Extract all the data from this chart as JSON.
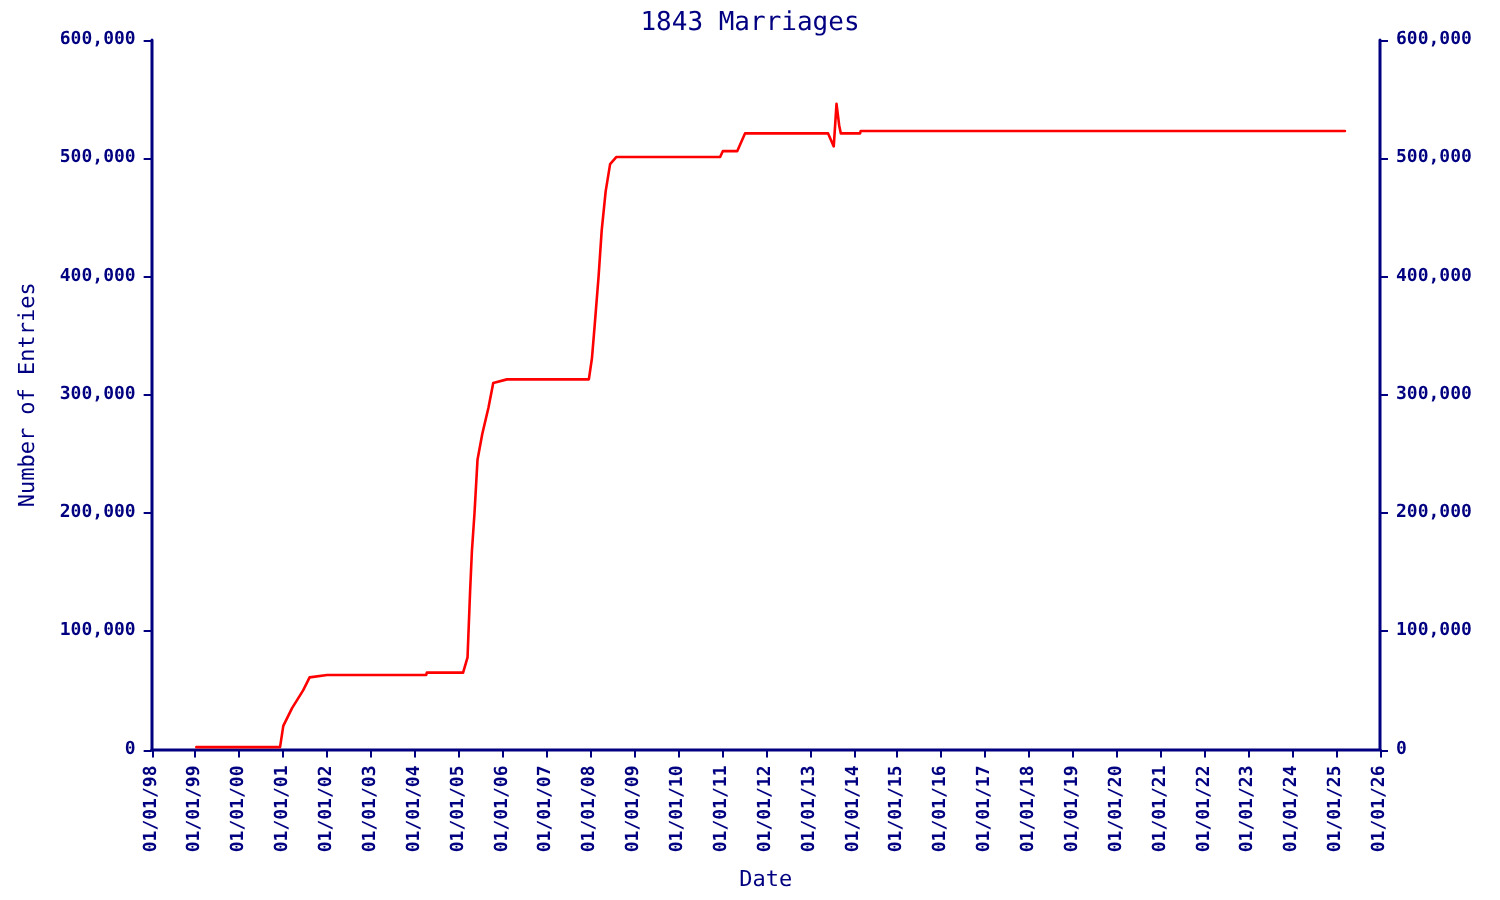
{
  "chart_data": {
    "type": "line",
    "title": "1843 Marriages",
    "xlabel": "Date",
    "ylabel": "Number of Entries",
    "x": [
      "1999-01-08",
      "2000-12-05",
      "2001-01-01",
      "2001-03-15",
      "2001-06-15",
      "2001-08-08",
      "2002-01-01",
      "2004-04-05",
      "2004-04-10",
      "2005-02-06",
      "2005-03-15",
      "2005-04-05",
      "2005-04-20",
      "2005-05-12",
      "2005-06-06",
      "2005-07-16",
      "2005-09-05",
      "2005-10-15",
      "2006-02-06",
      "2007-12-20",
      "2008-01-15",
      "2008-02-06",
      "2008-03-10",
      "2008-04-05",
      "2008-05-08",
      "2008-06-14",
      "2008-08-04",
      "2010-12-17",
      "2011-01-08",
      "2011-05-08",
      "2011-07-12",
      "2013-06-03",
      "2013-07-20",
      "2013-08-12",
      "2013-09-03",
      "2013-09-17",
      "2014-02-24",
      "2014-03-01",
      "2025-03-15"
    ],
    "series": [
      {
        "color": "#ff0000",
        "values": [
          2000,
          2000,
          20000,
          35000,
          50000,
          61000,
          63000,
          63000,
          65000,
          65000,
          78000,
          133000,
          167000,
          200000,
          245000,
          267000,
          289000,
          310000,
          313000,
          313000,
          331000,
          358000,
          400000,
          439000,
          472000,
          495000,
          501000,
          501000,
          506000,
          506000,
          521000,
          521000,
          510000,
          546000,
          528000,
          521000,
          521000,
          523000,
          523000
        ]
      }
    ],
    "xlim": [
      "1998-01-01",
      "2026-01-01"
    ],
    "xticks": [
      {
        "value": "1998-01-01",
        "label": "01/01/98"
      },
      {
        "value": "1999-01-01",
        "label": "01/01/99"
      },
      {
        "value": "2000-01-01",
        "label": "01/01/00"
      },
      {
        "value": "2001-01-01",
        "label": "01/01/01"
      },
      {
        "value": "2002-01-01",
        "label": "01/01/02"
      },
      {
        "value": "2003-01-01",
        "label": "01/01/03"
      },
      {
        "value": "2004-01-01",
        "label": "01/01/04"
      },
      {
        "value": "2005-01-01",
        "label": "01/01/05"
      },
      {
        "value": "2006-01-01",
        "label": "01/01/06"
      },
      {
        "value": "2007-01-01",
        "label": "01/01/07"
      },
      {
        "value": "2008-01-01",
        "label": "01/01/08"
      },
      {
        "value": "2009-01-01",
        "label": "01/01/09"
      },
      {
        "value": "2010-01-01",
        "label": "01/01/10"
      },
      {
        "value": "2011-01-01",
        "label": "01/01/11"
      },
      {
        "value": "2012-01-01",
        "label": "01/01/12"
      },
      {
        "value": "2013-01-01",
        "label": "01/01/13"
      },
      {
        "value": "2014-01-01",
        "label": "01/01/14"
      },
      {
        "value": "2015-01-01",
        "label": "01/01/15"
      },
      {
        "value": "2016-01-01",
        "label": "01/01/16"
      },
      {
        "value": "2017-01-01",
        "label": "01/01/17"
      },
      {
        "value": "2018-01-01",
        "label": "01/01/18"
      },
      {
        "value": "2019-01-01",
        "label": "01/01/19"
      },
      {
        "value": "2020-01-01",
        "label": "01/01/20"
      },
      {
        "value": "2021-01-01",
        "label": "01/01/21"
      },
      {
        "value": "2022-01-01",
        "label": "01/01/22"
      },
      {
        "value": "2023-01-01",
        "label": "01/01/23"
      },
      {
        "value": "2024-01-01",
        "label": "01/01/24"
      },
      {
        "value": "2025-01-01",
        "label": "01/01/25"
      },
      {
        "value": "2026-01-01",
        "label": "01/01/26"
      }
    ],
    "ylim": [
      0,
      600000
    ],
    "yticks": [
      0,
      {
        "value": 100000,
        "label": "100,000"
      },
      {
        "value": 200000,
        "label": "200,000"
      },
      {
        "value": 300000,
        "label": "300,000"
      },
      {
        "value": 400000,
        "label": "400,000"
      },
      {
        "value": 500000,
        "label": "500,000"
      },
      {
        "value": 600000,
        "label": "600,000"
      }
    ],
    "y2lim": [
      0,
      600000
    ],
    "y2ticks": [
      0,
      {
        "value": 100000,
        "label": "100,000"
      },
      {
        "value": 200000,
        "label": "200,000"
      },
      {
        "value": 300000,
        "label": "300,000"
      },
      {
        "value": 400000,
        "label": "400,000"
      },
      {
        "value": 500000,
        "label": "500,000"
      },
      {
        "value": 600000,
        "label": "600,000"
      }
    ],
    "grid": false,
    "marker": "none",
    "line_style": "solid"
  }
}
